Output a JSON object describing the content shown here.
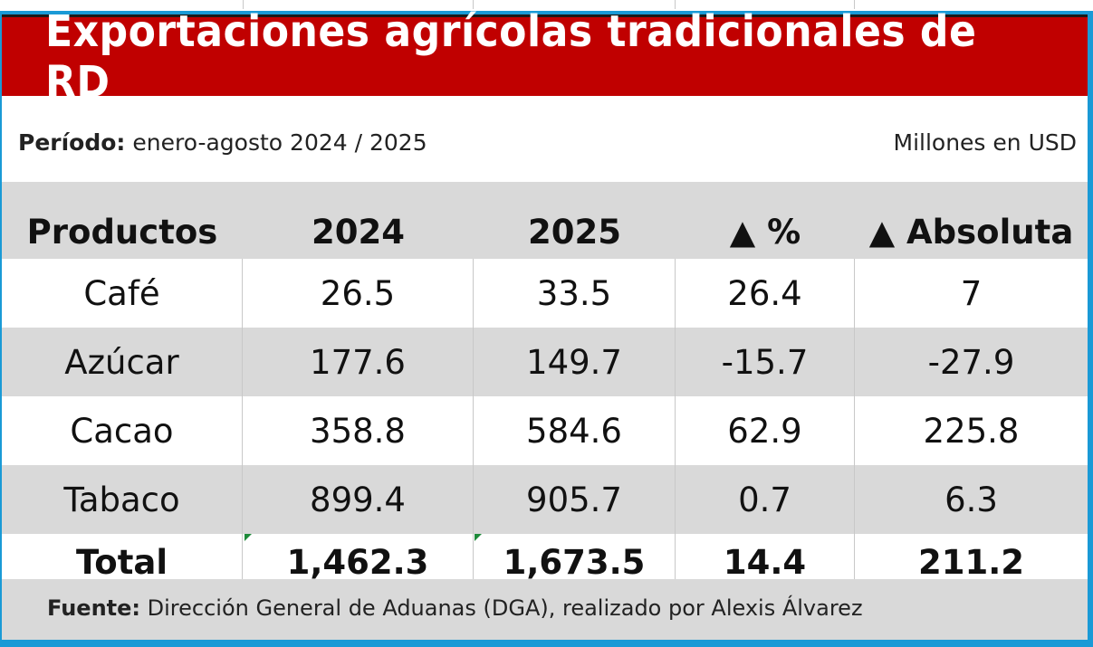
{
  "title": "Exportaciones agrícolas tradicionales de RD",
  "period": {
    "label": "Período:",
    "value": "enero-agosto 2024 / 2025"
  },
  "units": "Millones en USD",
  "table": {
    "headers": [
      "Productos",
      "2024",
      "2025",
      "▲ %",
      "▲ Absoluta"
    ],
    "rows": [
      {
        "product": "Café",
        "y2024": "26.5",
        "y2025": "33.5",
        "pct": "26.4",
        "abs": "7"
      },
      {
        "product": "Azúcar",
        "y2024": "177.6",
        "y2025": "149.7",
        "pct": "-15.7",
        "abs": "-27.9"
      },
      {
        "product": "Cacao",
        "y2024": "358.8",
        "y2025": "584.6",
        "pct": "62.9",
        "abs": "225.8"
      },
      {
        "product": "Tabaco",
        "y2024": "899.4",
        "y2025": "905.7",
        "pct": "0.7",
        "abs": "6.3"
      }
    ],
    "total": {
      "product": "Total",
      "y2024": "1,462.3",
      "y2025": "1,673.5",
      "pct": "14.4",
      "abs": "211.2"
    }
  },
  "source": {
    "label": "Fuente:",
    "value": "Dirección General de Aduanas (DGA), realizado por Alexis Álvarez"
  },
  "colors": {
    "title_bg": "#c00000",
    "frame": "#1a9ad6",
    "stripe": "#d9d9d9",
    "cell_marker": "#1e8a3a"
  }
}
